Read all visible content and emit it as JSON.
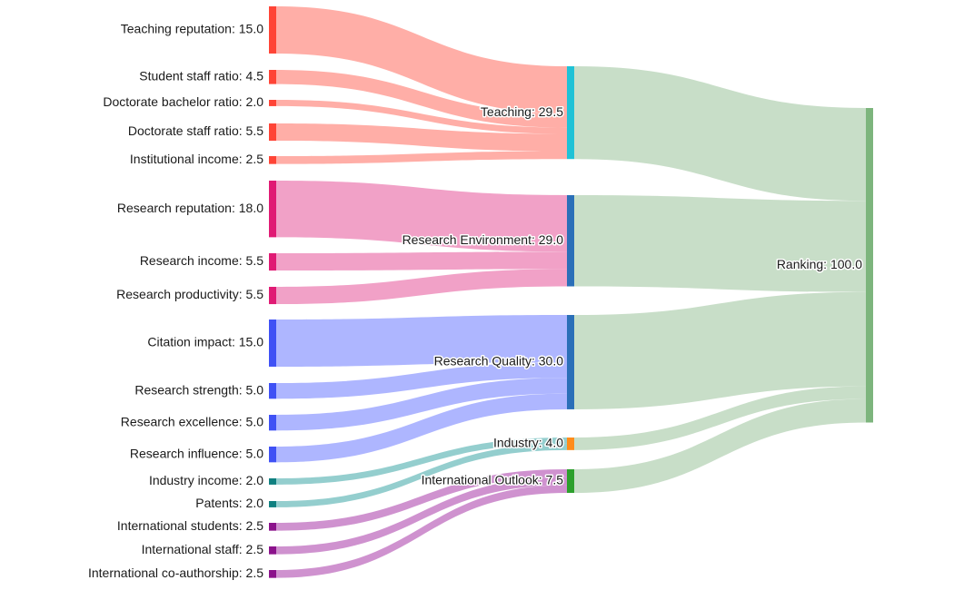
{
  "colors": {
    "teaching": "#ff4436",
    "teaching_link": "#ffaaa2",
    "research_env": "#e01a74",
    "research_env_link": "#f09cc4",
    "research_quality": "#3f51f5",
    "research_quality_link": "#aab2ff",
    "industry": "#0f8080",
    "industry_link": "#8ecbcb",
    "international": "#8b128b",
    "international_link": "#cc8ccc",
    "final_link": "#c5dcc5",
    "bar_teaching": "#1fc2d6",
    "bar_research_env": "#2b6fb8",
    "bar_research_quality": "#2b6fb8",
    "bar_industry": "#ff8c1a",
    "bar_international": "#2ca02c",
    "bar_ranking": "#7db57d"
  },
  "sources": [
    {
      "id": "teaching-reputation",
      "label": "Teaching reputation: 15.0",
      "value": 15.0,
      "target": "teaching",
      "group": "teaching"
    },
    {
      "id": "student-staff-ratio",
      "label": "Student staff ratio: 4.5",
      "value": 4.5,
      "target": "teaching",
      "group": "teaching"
    },
    {
      "id": "doctorate-bachelor-ratio",
      "label": "Doctorate bachelor ratio: 2.0",
      "value": 2.0,
      "target": "teaching",
      "group": "teaching"
    },
    {
      "id": "doctorate-staff-ratio",
      "label": "Doctorate staff ratio: 5.5",
      "value": 5.5,
      "target": "teaching",
      "group": "teaching"
    },
    {
      "id": "institutional-income",
      "label": "Institutional income: 2.5",
      "value": 2.5,
      "target": "teaching",
      "group": "teaching"
    },
    {
      "id": "research-reputation",
      "label": "Research reputation: 18.0",
      "value": 18.0,
      "target": "research_env",
      "group": "research_env"
    },
    {
      "id": "research-income",
      "label": "Research income: 5.5",
      "value": 5.5,
      "target": "research_env",
      "group": "research_env"
    },
    {
      "id": "research-productivity",
      "label": "Research productivity: 5.5",
      "value": 5.5,
      "target": "research_env",
      "group": "research_env"
    },
    {
      "id": "citation-impact",
      "label": "Citation impact: 15.0",
      "value": 15.0,
      "target": "research_quality",
      "group": "research_quality"
    },
    {
      "id": "research-strength",
      "label": "Research strength: 5.0",
      "value": 5.0,
      "target": "research_quality",
      "group": "research_quality"
    },
    {
      "id": "research-excellence",
      "label": "Research excellence: 5.0",
      "value": 5.0,
      "target": "research_quality",
      "group": "research_quality"
    },
    {
      "id": "research-influence",
      "label": "Research influence: 5.0",
      "value": 5.0,
      "target": "research_quality",
      "group": "research_quality"
    },
    {
      "id": "industry-income",
      "label": "Industry income: 2.0",
      "value": 2.0,
      "target": "industry",
      "group": "industry"
    },
    {
      "id": "patents",
      "label": "Patents: 2.0",
      "value": 2.0,
      "target": "industry",
      "group": "industry"
    },
    {
      "id": "international-students",
      "label": "International students: 2.5",
      "value": 2.5,
      "target": "international",
      "group": "international"
    },
    {
      "id": "international-staff",
      "label": "International staff: 2.5",
      "value": 2.5,
      "target": "international",
      "group": "international"
    },
    {
      "id": "international-co-authorship",
      "label": "International co-authorship: 2.5",
      "value": 2.5,
      "target": "international",
      "group": "international"
    }
  ],
  "middles": [
    {
      "id": "teaching",
      "label": "Teaching: 29.5",
      "value": 29.5
    },
    {
      "id": "research_env",
      "label": "Research Environment: 29.0",
      "value": 29.0
    },
    {
      "id": "research_quality",
      "label": "Research Quality: 30.0",
      "value": 30.0
    },
    {
      "id": "industry",
      "label": "Industry: 4.0",
      "value": 4.0
    },
    {
      "id": "international",
      "label": "International Outlook: 7.5",
      "value": 7.5
    }
  ],
  "final": {
    "id": "ranking",
    "label": "Ranking: 100.0",
    "value": 100.0
  }
}
